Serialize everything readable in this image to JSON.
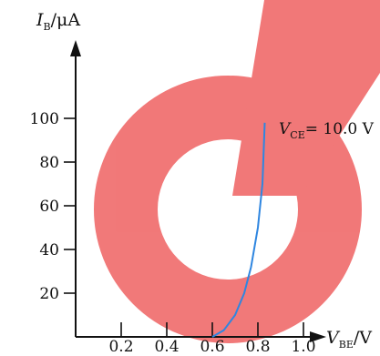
{
  "chart_data": {
    "type": "line",
    "title": "",
    "ylabel": "I_B/μA",
    "xlabel": "V_BE/V",
    "ylim": [
      0,
      100
    ],
    "xlim": [
      0,
      1.0
    ],
    "yticks": [
      20,
      40,
      60,
      80,
      100
    ],
    "xticks": [
      0.2,
      0.4,
      0.6,
      0.8,
      1.0
    ],
    "yticklabels": [
      "20",
      "40",
      "60",
      "80",
      "100"
    ],
    "xticklabels": [
      "0.2",
      "0.4",
      "0.6",
      "0.8",
      "1.0"
    ],
    "grid": false,
    "series": [
      {
        "name": "V_CE = 10.0 V",
        "x": [
          0.6,
          0.65,
          0.7,
          0.74,
          0.77,
          0.8,
          0.82,
          0.83
        ],
        "y": [
          0,
          3,
          10,
          20,
          32,
          50,
          70,
          98
        ]
      }
    ],
    "annotation": "V_CE= 10.0 V"
  },
  "colors": {
    "curve": "#2f86e0",
    "axis": "#111111",
    "watermark": "#f06a6a"
  },
  "watermark": {
    "name": "logo-watermark"
  }
}
